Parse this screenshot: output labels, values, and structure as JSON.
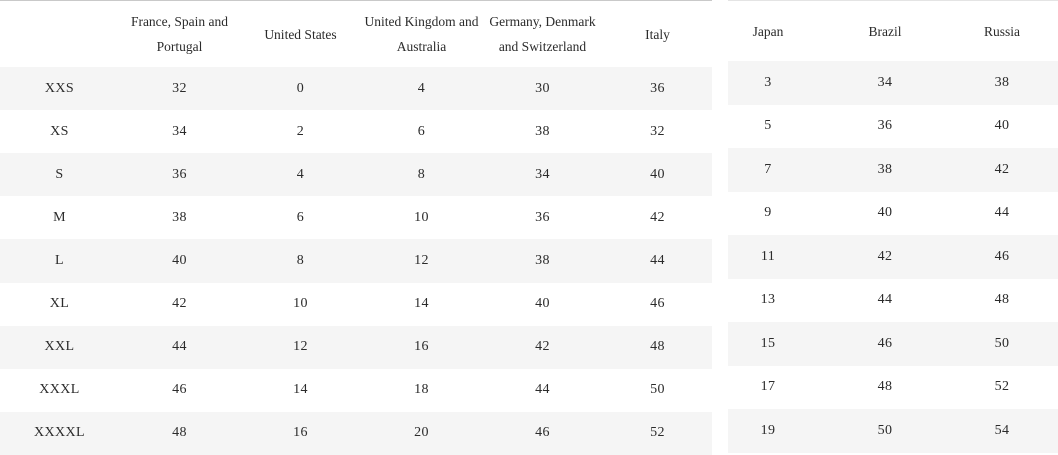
{
  "left_table": {
    "columns": [
      "",
      "France, Spain and Portugal",
      "United States",
      "United Kingdom and Australia",
      "Germany, Denmark and Switzerland",
      "Italy"
    ],
    "rows": [
      {
        "label": "XXS",
        "values": [
          "32",
          "0",
          "4",
          "30",
          "36"
        ]
      },
      {
        "label": "XS",
        "values": [
          "34",
          "2",
          "6",
          "38",
          "32"
        ]
      },
      {
        "label": "S",
        "values": [
          "36",
          "4",
          "8",
          "34",
          "40"
        ]
      },
      {
        "label": "M",
        "values": [
          "38",
          "6",
          "10",
          "36",
          "42"
        ]
      },
      {
        "label": "L",
        "values": [
          "40",
          "8",
          "12",
          "38",
          "44"
        ]
      },
      {
        "label": "XL",
        "values": [
          "42",
          "10",
          "14",
          "40",
          "46"
        ]
      },
      {
        "label": "XXL",
        "values": [
          "44",
          "12",
          "16",
          "42",
          "48"
        ]
      },
      {
        "label": "XXXL",
        "values": [
          "46",
          "14",
          "18",
          "44",
          "50"
        ]
      },
      {
        "label": "XXXXL",
        "values": [
          "48",
          "16",
          "20",
          "46",
          "52"
        ]
      }
    ]
  },
  "right_table": {
    "columns": [
      "Japan",
      "Brazil",
      "Russia"
    ],
    "rows": [
      {
        "values": [
          "3",
          "34",
          "38"
        ]
      },
      {
        "values": [
          "5",
          "36",
          "40"
        ]
      },
      {
        "values": [
          "7",
          "38",
          "42"
        ]
      },
      {
        "values": [
          "9",
          "40",
          "44"
        ]
      },
      {
        "values": [
          "11",
          "42",
          "46"
        ]
      },
      {
        "values": [
          "13",
          "44",
          "48"
        ]
      },
      {
        "values": [
          "15",
          "46",
          "50"
        ]
      },
      {
        "values": [
          "17",
          "48",
          "52"
        ]
      },
      {
        "values": [
          "19",
          "50",
          "54"
        ]
      }
    ]
  },
  "colors": {
    "stripe": "#f5f5f5",
    "text": "#2b2b2b",
    "background": "#ffffff",
    "left_top_border": "#c9c9c9",
    "right_top_border": "#e4e4e4"
  }
}
